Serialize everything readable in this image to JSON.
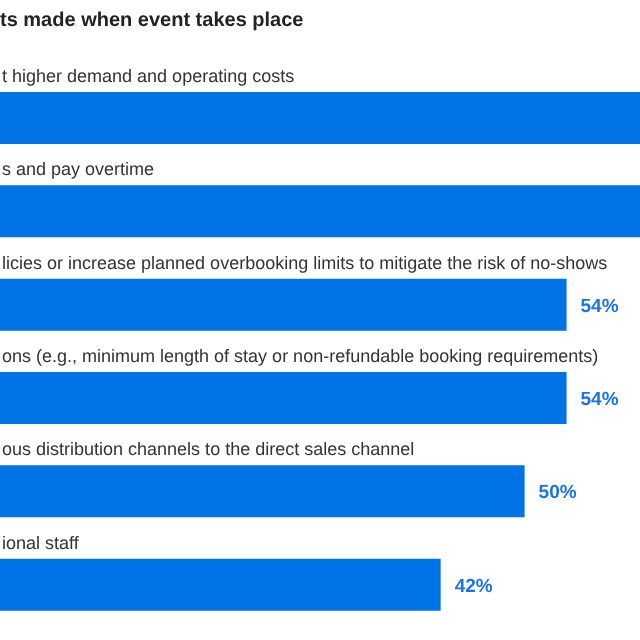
{
  "chart_data": {
    "type": "bar",
    "orientation": "horizontal",
    "title": "ts made when event takes place",
    "categories": [
      "t higher demand and operating costs",
      "s and pay overtime",
      "licies or increase planned overbooking limits to mitigate the risk of no-shows",
      "ons (e.g., minimum length of stay or non-refundable booking requirements)",
      "ous distribution channels to the direct sales channel",
      "ional staff"
    ],
    "values": [
      61,
      61,
      54,
      54,
      50,
      42
    ],
    "value_labels": [
      null,
      null,
      "54%",
      "54%",
      "50%",
      "42%"
    ],
    "color": "#0073e6"
  }
}
